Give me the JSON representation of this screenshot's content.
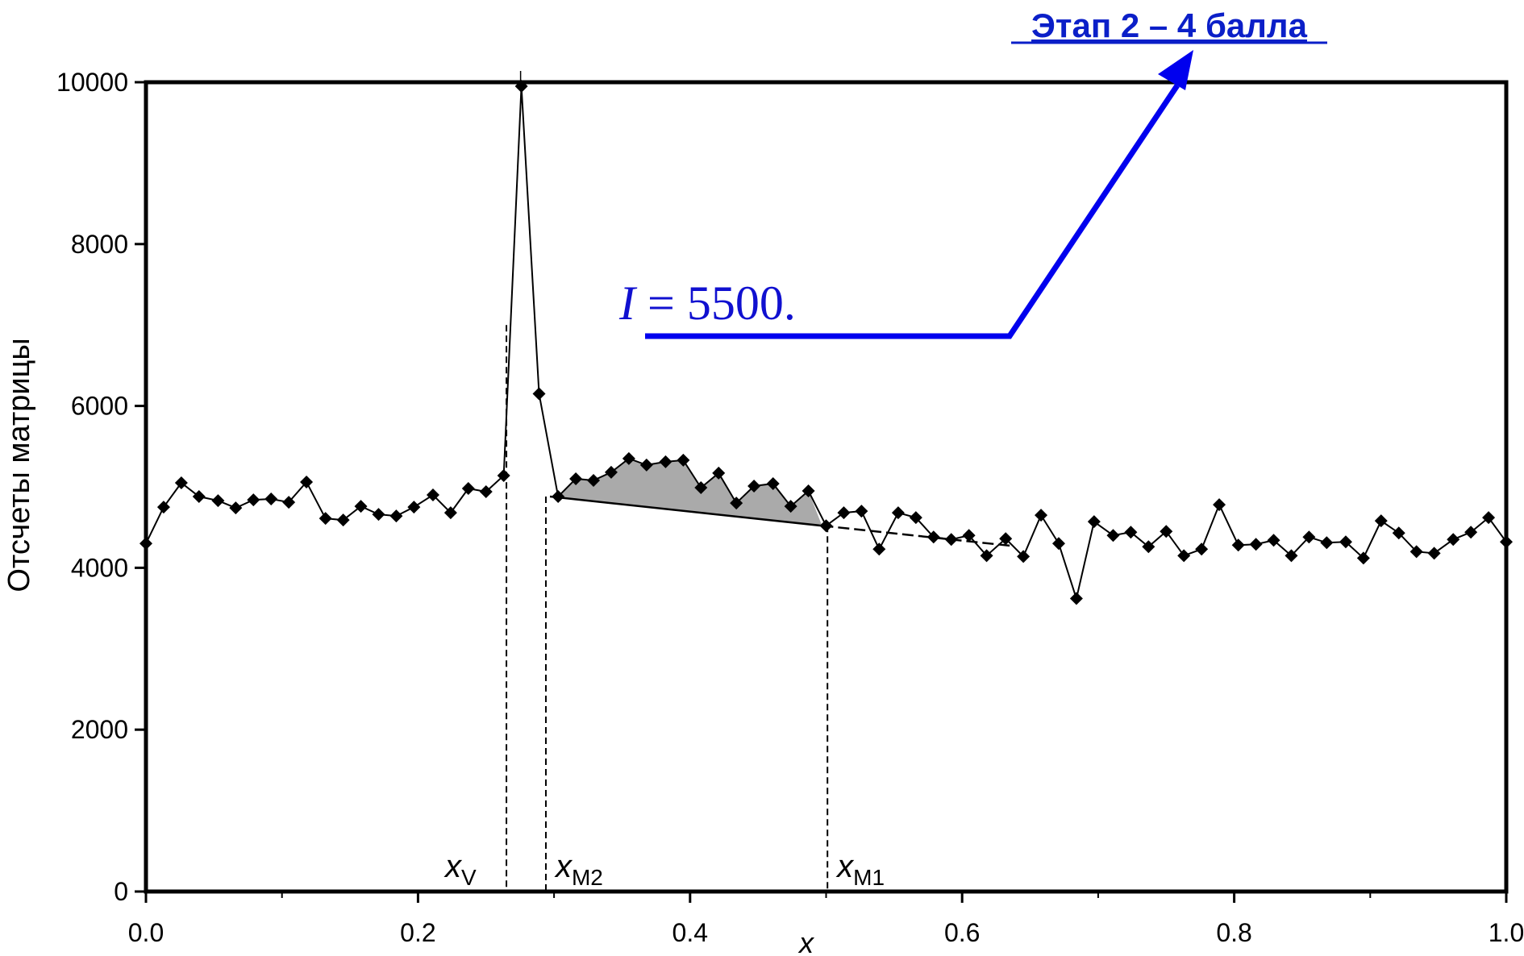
{
  "chart_data": {
    "type": "line",
    "title": "",
    "xlabel": "x",
    "ylabel": "Отсчеты матрицы",
    "xlim": [
      0.0,
      1.0
    ],
    "ylim": [
      0,
      10000
    ],
    "x_ticks": [
      "0.0",
      "0.2",
      "0.4",
      "0.6",
      "0.8",
      "1.0"
    ],
    "y_ticks": [
      "0",
      "2000",
      "4000",
      "6000",
      "8000",
      "10000"
    ],
    "grid": false,
    "legend": "none",
    "series": [
      {
        "x": [
          0.0,
          0.013,
          0.026,
          0.039,
          0.053,
          0.066,
          0.079,
          0.092,
          0.105,
          0.118,
          0.132,
          0.145,
          0.158,
          0.171,
          0.184,
          0.197,
          0.211,
          0.224,
          0.237,
          0.25,
          0.263,
          0.276,
          0.289,
          0.303,
          0.316,
          0.329,
          0.342,
          0.355,
          0.368,
          0.382,
          0.395,
          0.408,
          0.421,
          0.434,
          0.447,
          0.461,
          0.474,
          0.487,
          0.5,
          0.513,
          0.526,
          0.539,
          0.553,
          0.566,
          0.579,
          0.592,
          0.605,
          0.618,
          0.632,
          0.645,
          0.658,
          0.671,
          0.684,
          0.697,
          0.711,
          0.724,
          0.737,
          0.75,
          0.763,
          0.776,
          0.789,
          0.803,
          0.816,
          0.829,
          0.842,
          0.855,
          0.868,
          0.882,
          0.895,
          0.908,
          0.921,
          0.934,
          0.947,
          0.961,
          0.974,
          0.987,
          1.0
        ],
        "values": [
          4300,
          4750,
          5050,
          4880,
          4830,
          4740,
          4840,
          4850,
          4810,
          5060,
          4610,
          4590,
          4760,
          4660,
          4640,
          4750,
          4900,
          4680,
          4980,
          4940,
          5140,
          9950,
          6150,
          4880,
          5100,
          5080,
          5180,
          5350,
          5270,
          5310,
          5330,
          4990,
          5170,
          4800,
          5010,
          5040,
          4760,
          4950,
          4520,
          4680,
          4700,
          4230,
          4680,
          4620,
          4380,
          4350,
          4400,
          4150,
          4360,
          4140,
          4650,
          4300,
          3620,
          4570,
          4400,
          4440,
          4260,
          4450,
          4150,
          4230,
          4780,
          4280,
          4290,
          4340,
          4150,
          4380,
          4310,
          4320,
          4120,
          4580,
          4430,
          4200,
          4180,
          4350,
          4440,
          4620,
          4320
        ]
      }
    ],
    "baseline": {
      "x": [
        0.297,
        0.497,
        0.637
      ],
      "values": [
        4880,
        4520,
        4270
      ]
    },
    "shaded_region": {
      "x_start": 0.297,
      "x_end": 0.497
    },
    "vertical_markers": [
      {
        "label_main": "x",
        "label_sub": "V",
        "x": 0.265,
        "ytop": 7000
      },
      {
        "label_main": "x",
        "label_sub": "M2",
        "x": 0.294,
        "ytop": 4880
      },
      {
        "label_main": "x",
        "label_sub": "M1",
        "x": 0.501,
        "ytop": 4520
      }
    ],
    "annotation": {
      "text": "I = 5500.",
      "italic_part": "I",
      "rest": " = 5500."
    },
    "stage_label": "Этап 2 – 4 балла",
    "colors": {
      "line": "#000000",
      "fill": "#aaaaaa",
      "annotation": "#0000ee",
      "stage": "#0b1fc8"
    }
  }
}
